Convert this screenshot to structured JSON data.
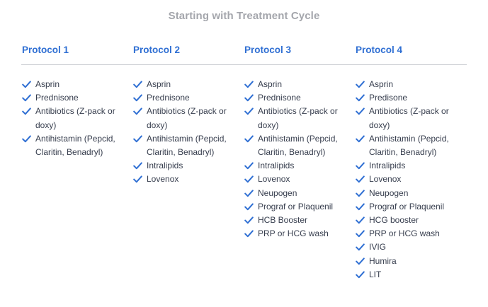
{
  "title": "Starting with Treatment Cycle",
  "colors": {
    "accent": "#2f6fd3",
    "title": "#a4a6ac",
    "text": "#363d4d",
    "divider": "#c9ccd1"
  },
  "check_icon": "checkmark-icon",
  "protocols": [
    {
      "name": "Protocol 1",
      "items": [
        "Asprin",
        "Prednisone",
        "Antibiotics (Z-pack or doxy)",
        "Antihistamin (Pepcid, Claritin, Benadryl)"
      ]
    },
    {
      "name": "Protocol 2",
      "items": [
        "Asprin",
        "Prednisone",
        "Antibiotics (Z-pack or doxy)",
        "Antihistamin (Pepcid, Claritin, Benadryl)",
        "Intralipids",
        "Lovenox"
      ]
    },
    {
      "name": "Protocol 3",
      "items": [
        "Asprin",
        "Prednisone",
        "Antibiotics (Z-pack or doxy)",
        "Antihistamin (Pepcid, Claritin, Benadryl)",
        "Intralipids",
        "Lovenox",
        "Neupogen",
        "Prograf or Plaquenil",
        "HCB Booster",
        "PRP or HCG wash"
      ]
    },
    {
      "name": "Protocol 4",
      "items": [
        "Asprin",
        "Predisone",
        "Antibiotics (Z-pack or doxy)",
        "Antihistamin (Pepcid, Claritin, Benadryl)",
        "Intralipids",
        "Lovenox",
        "Neupogen",
        "Prograf or Plaquenil",
        "HCG booster",
        "PRP or HCG wash",
        "IVIG",
        "Humira",
        "LIT"
      ]
    }
  ]
}
